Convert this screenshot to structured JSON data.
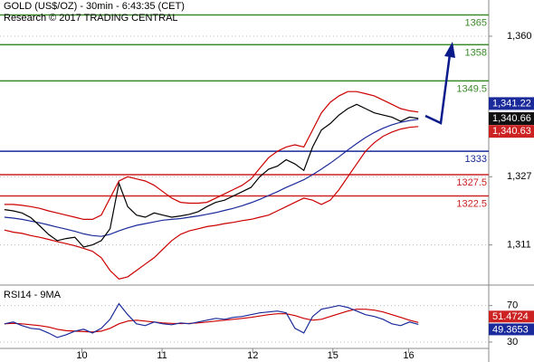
{
  "chart_data": [
    {
      "type": "line",
      "title": "GOLD (US$/OZ) - 30min - 6:43:35 (CET)",
      "subtitle": "Research © 2017 TRADING CENTRAL",
      "xlim": [
        -0.5,
        55
      ],
      "ylim": [
        1302,
        1368.5
      ],
      "yticks": [
        {
          "value": 1311,
          "label": "1,311"
        },
        {
          "value": 1327,
          "label": "1,327"
        },
        {
          "value": 1360,
          "label": "1,360"
        }
      ],
      "grid": true,
      "series": [
        {
          "color": "#cc0000",
          "values": [
            1320.5,
            1320.5,
            1320.3,
            1320,
            1319.6,
            1319,
            1318.5,
            1318,
            1317.5,
            1317,
            1317,
            1318,
            1322,
            1326,
            1327,
            1326.5,
            1326,
            1325,
            1323.5,
            1322,
            1321,
            1320.8,
            1320.8,
            1321,
            1322,
            1323,
            1324,
            1325,
            1326.5,
            1329,
            1331.5,
            1333,
            1334,
            1334.5,
            1334,
            1338,
            1342,
            1344.5,
            1346,
            1347,
            1347,
            1346.5,
            1346,
            1345,
            1344,
            1343,
            1342.5,
            1342.2
          ]
        },
        {
          "color": "#cc0000",
          "values": [
            1314.5,
            1314,
            1313.7,
            1313.2,
            1312.8,
            1312.3,
            1311.8,
            1311.3,
            1310.8,
            1310.2,
            1309.5,
            1308,
            1305,
            1303,
            1303.5,
            1305,
            1306.5,
            1308,
            1310,
            1312,
            1313.5,
            1314.3,
            1314.8,
            1315.3,
            1315.6,
            1316,
            1316.3,
            1316.7,
            1317,
            1317.5,
            1318,
            1319,
            1320,
            1321,
            1322,
            1321.5,
            1320.5,
            1321.5,
            1324,
            1327,
            1330,
            1333,
            1335,
            1336.5,
            1337.5,
            1338.2,
            1338.6,
            1338.8
          ]
        },
        {
          "color": "#1a2a9a",
          "values": [
            1317.5,
            1317.3,
            1317,
            1316.6,
            1316.2,
            1315.7,
            1315.2,
            1314.7,
            1314.2,
            1313.6,
            1313.2,
            1313,
            1313.5,
            1314.3,
            1315,
            1315.6,
            1316,
            1316.4,
            1316.8,
            1317,
            1317.2,
            1317.5,
            1317.8,
            1318.2,
            1318.6,
            1319.1,
            1319.6,
            1320.2,
            1320.9,
            1321.7,
            1322.6,
            1323.5,
            1324.5,
            1325.4,
            1326.3,
            1327.5,
            1328.8,
            1330.2,
            1331.7,
            1333.3,
            1334.8,
            1336.2,
            1337.4,
            1338.4,
            1339.2,
            1339.8,
            1340.2,
            1340.5
          ]
        },
        {
          "color": "#000000",
          "values": [
            1319.3,
            1319,
            1318.5,
            1317.4,
            1315.5,
            1313.5,
            1312,
            1312.5,
            1312.8,
            1310.5,
            1311,
            1312,
            1314.8,
            1325.5,
            1320,
            1318,
            1317.5,
            1318.5,
            1318,
            1317.5,
            1317.8,
            1318.2,
            1318.8,
            1320,
            1321,
            1321.5,
            1322.5,
            1323.5,
            1324.5,
            1327,
            1328.8,
            1329.5,
            1331,
            1330,
            1328.5,
            1334,
            1338,
            1339.5,
            1341.5,
            1343,
            1344,
            1343,
            1342,
            1341.5,
            1341,
            1340,
            1341,
            1340.7
          ]
        }
      ],
      "levels": [
        {
          "value": 1365,
          "color": "#3a8a2a"
        },
        {
          "value": 1358,
          "color": "#3a8a2a"
        },
        {
          "value": 1349.5,
          "color": "#3a8a2a"
        },
        {
          "value": 1333,
          "color": "#1a2a9a"
        },
        {
          "value": 1327.5,
          "color": "#cc2222"
        },
        {
          "value": 1322.5,
          "color": "#cc2222"
        }
      ],
      "price_boxes": [
        {
          "value": 1341.22,
          "label": "1,341.22",
          "color": "#1a2a9a"
        },
        {
          "value": 1340.66,
          "label": "1,340.66",
          "color": "#111111"
        },
        {
          "value": 1340.63,
          "label": "1,340.63",
          "color": "#cc2222"
        }
      ]
    },
    {
      "type": "line",
      "title": "RSI14 - 9MA",
      "xlim": [
        -0.5,
        55
      ],
      "xticks": [
        {
          "value": 8.8,
          "label": "10"
        },
        {
          "value": 17.9,
          "label": "11"
        },
        {
          "value": 28.2,
          "label": "12"
        },
        {
          "value": 37.3,
          "label": "15"
        },
        {
          "value": 45.9,
          "label": "16"
        }
      ],
      "ylim": [
        24,
        89.5
      ],
      "yticks": [
        30,
        70
      ],
      "series": [
        {
          "color": "#cc0000",
          "values": [
            50,
            50.5,
            50,
            49,
            48,
            46.5,
            44,
            42.5,
            42,
            41.5,
            41,
            42,
            45,
            50,
            53,
            54,
            53,
            52,
            51,
            50.5,
            50.3,
            50.5,
            51,
            52,
            53,
            54,
            55,
            56,
            57,
            58.5,
            60,
            61,
            61,
            59,
            56,
            54,
            55,
            58,
            61,
            64,
            66,
            66,
            65,
            63,
            60,
            57,
            54,
            51.5
          ]
        },
        {
          "color": "#1a2a9a",
          "values": [
            50,
            52,
            48,
            45,
            44,
            40,
            35,
            38,
            42,
            44,
            40,
            45,
            55,
            72,
            60,
            50,
            48,
            52,
            50,
            49,
            51,
            50,
            52,
            54,
            56,
            55,
            57,
            58,
            60,
            62,
            63,
            64,
            62,
            45,
            40,
            58,
            66,
            68,
            70,
            68,
            64,
            60,
            58,
            55,
            50,
            48,
            52,
            49.4
          ]
        }
      ],
      "last_boxes": [
        {
          "value": 51.4724,
          "color": "#cc2222"
        },
        {
          "value": 49.3653,
          "color": "#1a2a9a"
        }
      ]
    }
  ]
}
